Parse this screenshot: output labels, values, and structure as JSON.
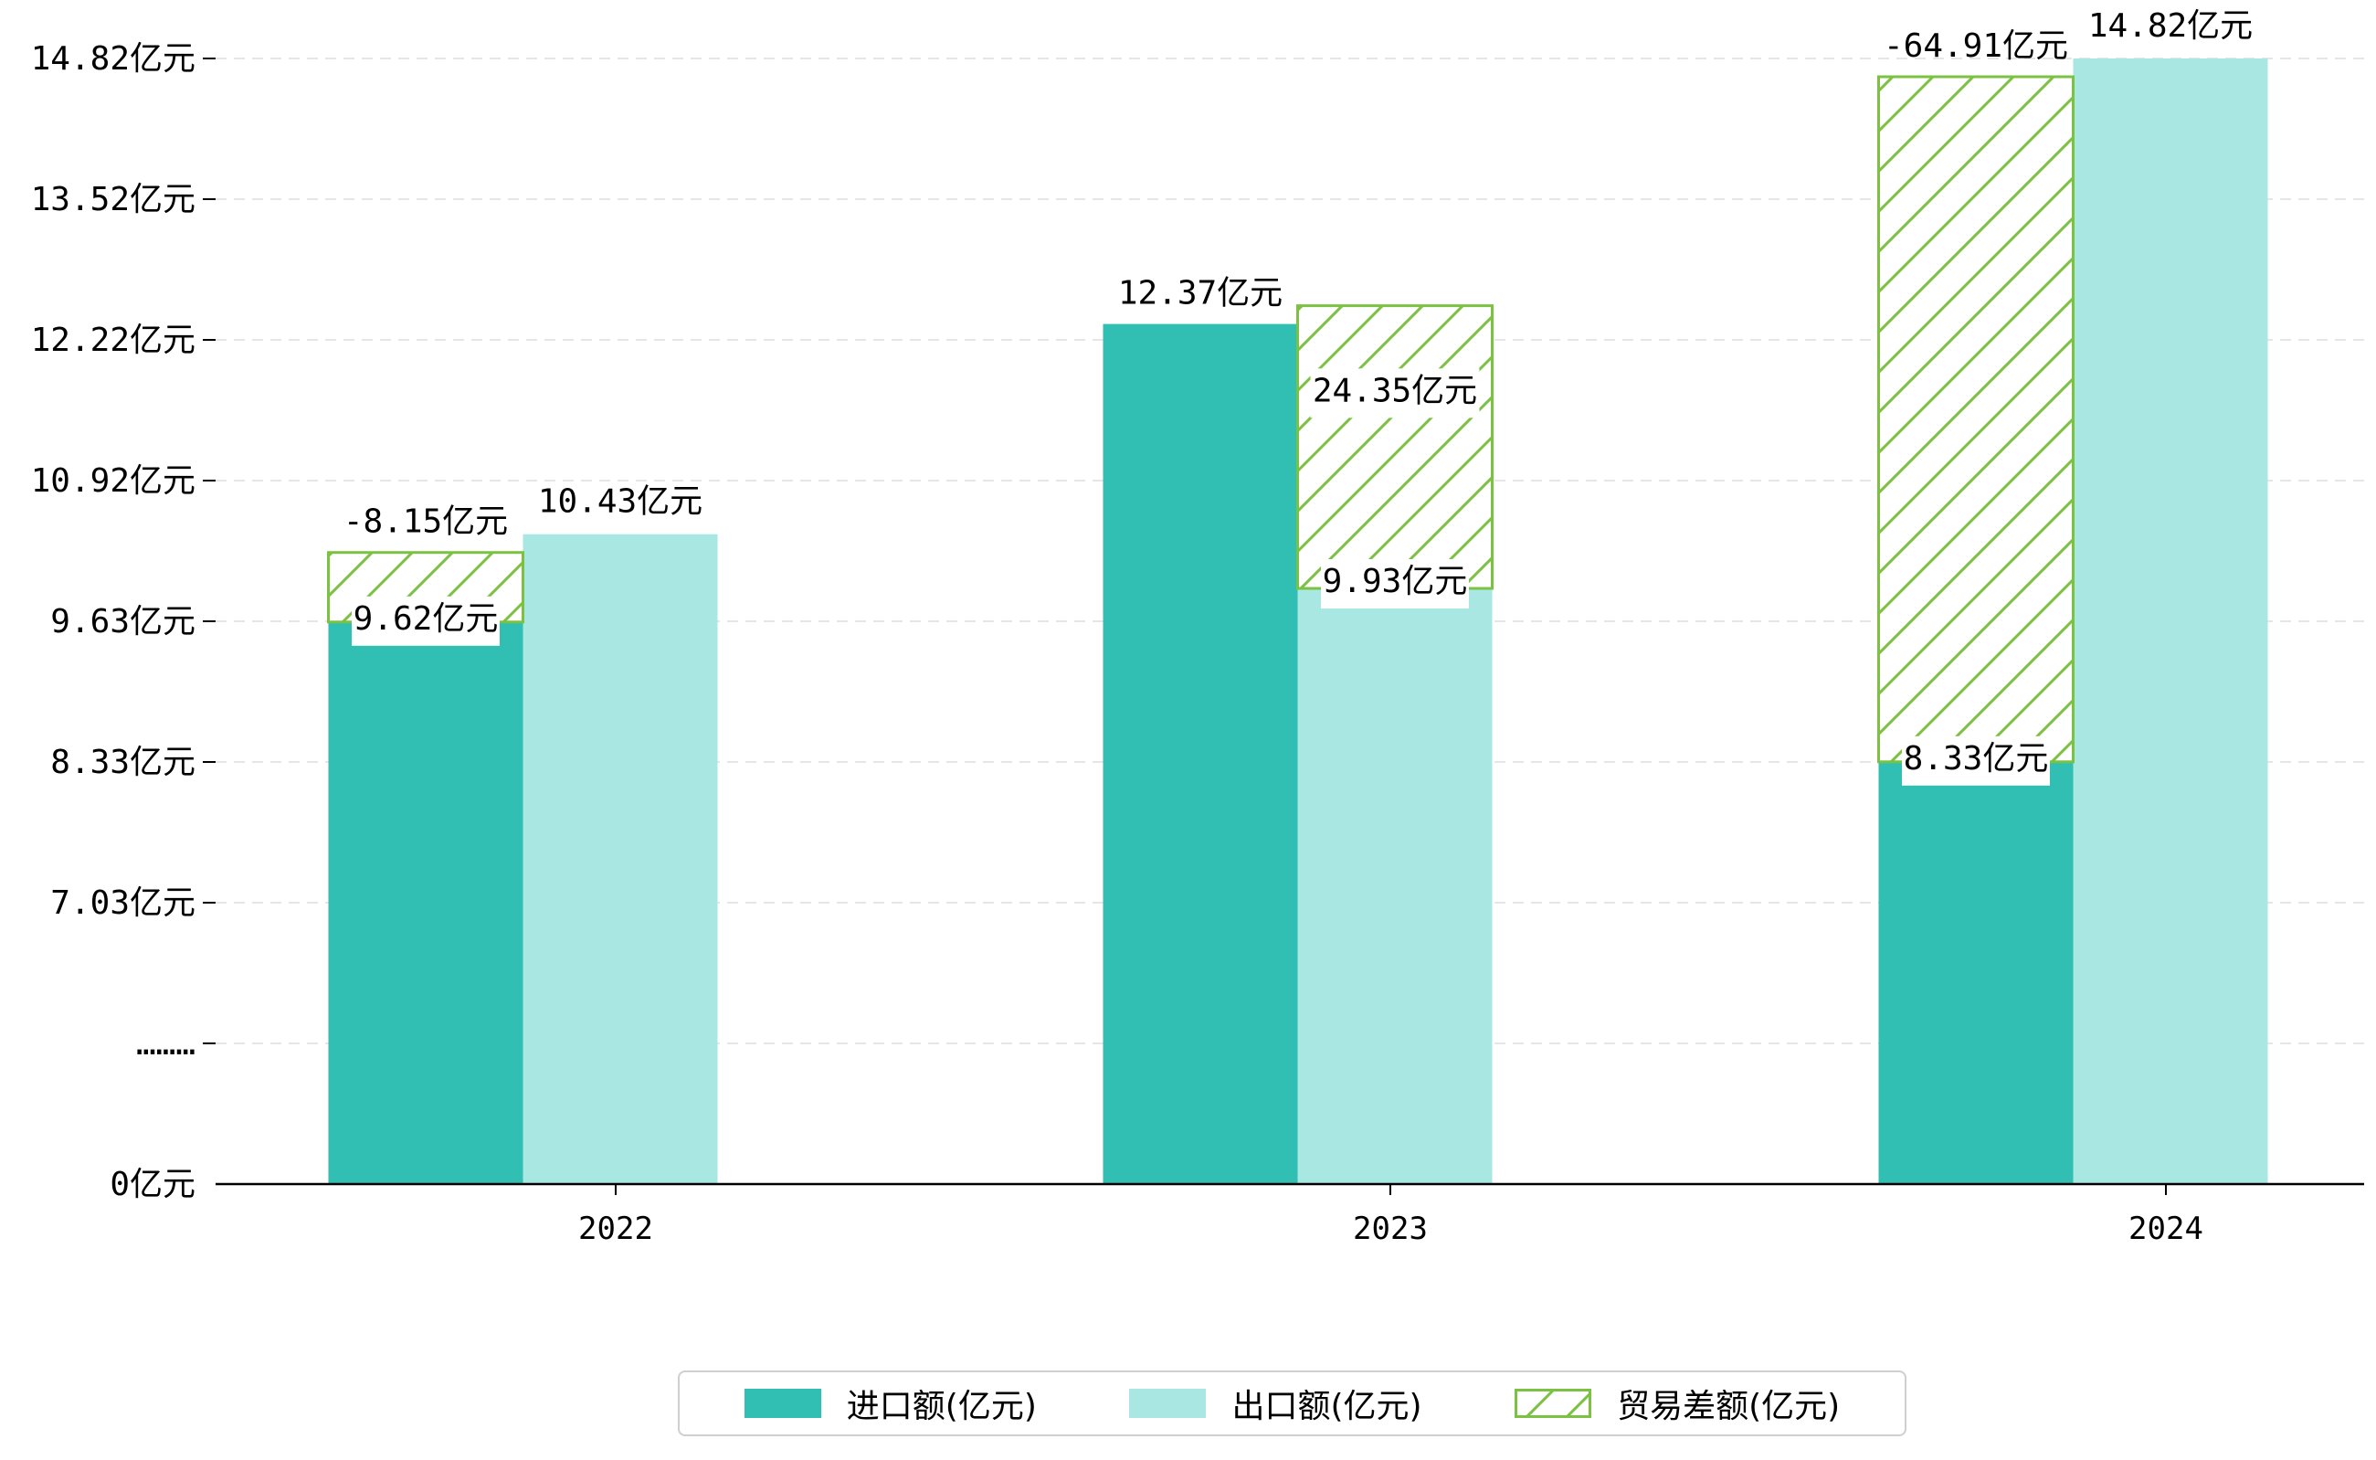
{
  "chart_data": {
    "type": "bar",
    "categories": [
      "2022",
      "2023",
      "2024"
    ],
    "series": [
      {
        "name": "进口额(亿元)",
        "values": [
          9.62,
          12.37,
          8.33
        ],
        "color": "#31bfb3",
        "labels": [
          "9.62亿元",
          "12.37亿元",
          "8.33亿元"
        ]
      },
      {
        "name": "出口额(亿元)",
        "values": [
          10.43,
          9.93,
          14.82
        ],
        "color": "#a9e7e2",
        "labels": [
          "10.43亿元",
          "9.93亿元",
          "14.82亿元"
        ]
      },
      {
        "name": "贸易差额(亿元)",
        "values": [
          -8.15,
          24.35,
          -64.91
        ],
        "color": "#7cc242",
        "hatch": true,
        "labels": [
          "-8.15亿元",
          "24.35亿元",
          "-64.91亿元"
        ]
      }
    ],
    "y_tick_labels": [
      "0亿元",
      "………",
      "7.03亿元",
      "8.33亿元",
      "9.63亿元",
      "10.92亿元",
      "12.22亿元",
      "13.52亿元",
      "14.82亿元"
    ],
    "y_axis_note": "broken axis; display scale from 0 with break, then 7.03–14.82 linear",
    "ylim": [
      0,
      14.82
    ],
    "grid": true,
    "legend_position": "bottom-center"
  }
}
